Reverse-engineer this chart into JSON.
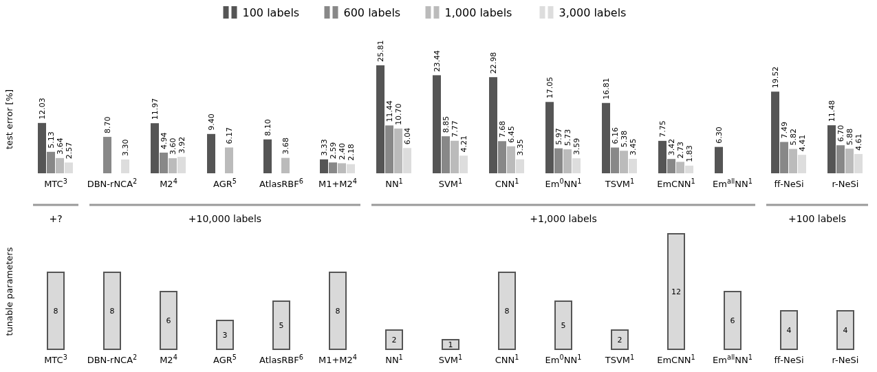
{
  "chart_data": [
    {
      "type": "bar",
      "ylabel": "test error [%]",
      "legend": "top",
      "categories": [
        "MTC$^{3}$",
        "DBN-rNCA$^{2}$",
        "M2$^{4}$",
        "AGR$^{5}$",
        "AtlasRBF$^{6}$",
        "M1+M2$^{4}$",
        "NN$^{1}$",
        "SVM$^{1}$",
        "CNN$^{1}$",
        "Em$^{0}$NN$^{1}$",
        "TSVM$^{1}$",
        "EmCNN$^{1}$",
        "Em$^{all}$NN$^{1}$",
        "ff-NeSi",
        "r-NeSi"
      ],
      "series": [
        {
          "name": "100 labels",
          "color": "#555555",
          "values": [
            12.03,
            null,
            11.97,
            9.4,
            8.1,
            3.33,
            25.81,
            23.44,
            22.98,
            17.05,
            16.81,
            7.75,
            6.3,
            19.52,
            11.48
          ],
          "value_labels": [
            "12.03",
            null,
            "11.97",
            "9.40",
            "8.10",
            "3.33",
            "25.81",
            "23.44",
            "22.98",
            "17.05",
            "16.81",
            "7.75",
            "6.30",
            "19.52",
            "11.48"
          ]
        },
        {
          "name": "600 labels",
          "color": "#888888",
          "values": [
            5.13,
            8.7,
            4.94,
            null,
            null,
            2.59,
            11.44,
            8.85,
            7.68,
            5.97,
            6.16,
            3.42,
            null,
            7.49,
            6.7
          ],
          "value_labels": [
            "5.13",
            "8.70",
            "4.94",
            null,
            null,
            "2.59",
            "11.44",
            "8.85",
            "7.68",
            "5.97",
            "6.16",
            "3.42",
            null,
            "7.49",
            "6.70"
          ]
        },
        {
          "name": "1,000 labels",
          "color": "#bbbbbb",
          "values": [
            3.64,
            null,
            3.6,
            6.17,
            3.68,
            2.4,
            10.7,
            7.77,
            6.45,
            5.73,
            5.38,
            2.73,
            null,
            5.82,
            5.88
          ],
          "value_labels": [
            "3.64",
            null,
            "3.60",
            "6.17",
            "3.68",
            "2.40",
            "10.70",
            "7.77",
            "6.45",
            "5.73",
            "5.38",
            "2.73",
            null,
            "5.82",
            "5.88"
          ]
        },
        {
          "name": "3,000 labels",
          "color": "#dddddd",
          "values": [
            2.57,
            3.3,
            3.92,
            null,
            null,
            2.18,
            6.04,
            4.21,
            3.35,
            3.59,
            3.45,
            1.83,
            null,
            4.41,
            4.61
          ],
          "value_labels": [
            "2.57",
            "3.30",
            "3.92",
            null,
            null,
            "2.18",
            "6.04",
            "4.21",
            "3.35",
            "3.59",
            "3.45",
            "1.83",
            null,
            "4.41",
            "4.61"
          ]
        }
      ],
      "annotations": [
        "+?",
        "+10,000 labels",
        "+1,000 labels",
        "+100 labels"
      ]
    },
    {
      "type": "bar",
      "ylabel": "tunable parameters",
      "data_labels": true,
      "color": "#d9d9d9",
      "categories": [
        "MTC$^{3}$",
        "DBN-rNCA$^{2}$",
        "M2$^{4}$",
        "AGR$^{5}$",
        "AtlasRBF$^{6}$",
        "M1+M2$^{4}$",
        "NN$^{1}$",
        "SVM$^{1}$",
        "CNN$^{1}$",
        "Em$^{0}$NN$^{1}$",
        "TSVM$^{1}$",
        "EmCNN$^{1}$",
        "Em$^{all}$NN$^{1}$",
        "ff-NeSi",
        "r-NeSi"
      ],
      "values": [
        8,
        8,
        6,
        3,
        5,
        8,
        2,
        1,
        8,
        5,
        2,
        12,
        6,
        4,
        4
      ]
    }
  ]
}
